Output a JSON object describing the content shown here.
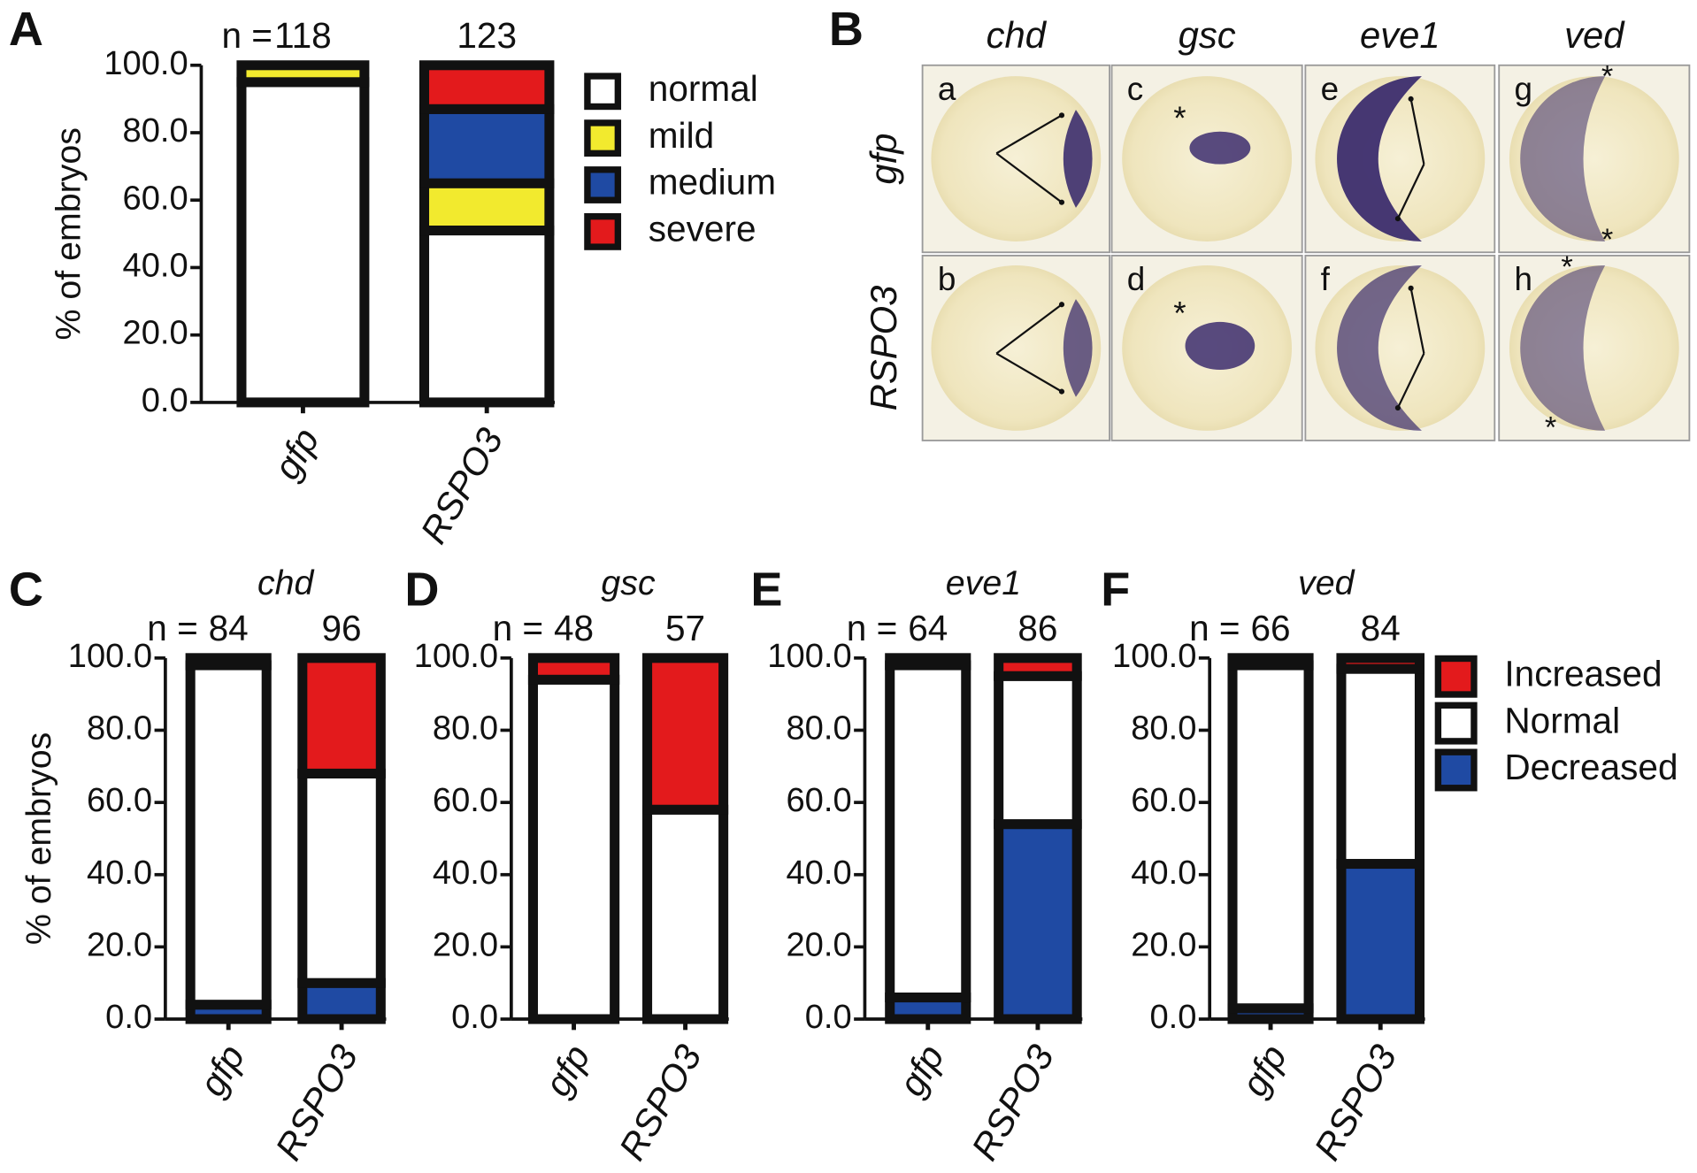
{
  "chart_data": [
    {
      "type": "stacked_bar",
      "panel": "A",
      "ylabel": "% of embryos",
      "n_label": "n =",
      "n": [
        118,
        123
      ],
      "categories": [
        "gfp",
        "RSPO3"
      ],
      "ylim": [
        0,
        100
      ],
      "yticks": [
        {
          "value": 0,
          "label": "0.0"
        },
        {
          "value": 20,
          "label": "20.0"
        },
        {
          "value": 40,
          "label": "40.0"
        },
        {
          "value": 60,
          "label": "60.0"
        },
        {
          "value": 80,
          "label": "80.0"
        },
        {
          "value": 100,
          "label": "100.0"
        }
      ],
      "legend": "right",
      "series": [
        {
          "name": "normal",
          "color": "#ffffff",
          "values": [
            95,
            51
          ]
        },
        {
          "name": "mild",
          "color": "#f2ea2e",
          "values": [
            5,
            14
          ]
        },
        {
          "name": "medium",
          "color": "#1f4aa3",
          "values": [
            0,
            22
          ]
        },
        {
          "name": "severe",
          "color": "#e31a1c",
          "values": [
            0,
            13
          ]
        }
      ]
    },
    {
      "type": "stacked_bar",
      "panel": "C",
      "title": "chd",
      "ylabel": "% of embryos",
      "n_label": "n =",
      "n": [
        84,
        96
      ],
      "categories": [
        "gfp",
        "RSPO3"
      ],
      "ylim": [
        0,
        100
      ],
      "yticks": [
        {
          "value": 0,
          "label": "0.0"
        },
        {
          "value": 20,
          "label": "20.0"
        },
        {
          "value": 40,
          "label": "40.0"
        },
        {
          "value": 60,
          "label": "60.0"
        },
        {
          "value": 80,
          "label": "80.0"
        },
        {
          "value": 100,
          "label": "100.0"
        }
      ],
      "series": [
        {
          "color": "#e31a1c",
          "values": [
            2,
            32
          ]
        },
        {
          "color": "#ffffff",
          "values": [
            94,
            58
          ]
        },
        {
          "color": "#1f4aa3",
          "values": [
            4,
            10
          ]
        }
      ]
    },
    {
      "type": "stacked_bar",
      "panel": "D",
      "title": "gsc",
      "n_label": "n =",
      "n": [
        48,
        57
      ],
      "categories": [
        "gfp",
        "RSPO3"
      ],
      "ylim": [
        0,
        100
      ],
      "yticks": [
        {
          "value": 0,
          "label": "0.0"
        },
        {
          "value": 20,
          "label": "20.0"
        },
        {
          "value": 40,
          "label": "40.0"
        },
        {
          "value": 60,
          "label": "60.0"
        },
        {
          "value": 80,
          "label": "80.0"
        },
        {
          "value": 100,
          "label": "100.0"
        }
      ],
      "series": [
        {
          "color": "#e31a1c",
          "values": [
            6,
            42
          ]
        },
        {
          "color": "#ffffff",
          "values": [
            94,
            58
          ]
        },
        {
          "color": "#1f4aa3",
          "values": [
            0,
            0
          ]
        }
      ]
    },
    {
      "type": "stacked_bar",
      "panel": "E",
      "title": "eve1",
      "n_label": "n =",
      "n": [
        64,
        86
      ],
      "categories": [
        "gfp",
        "RSPO3"
      ],
      "ylim": [
        0,
        100
      ],
      "yticks": [
        {
          "value": 0,
          "label": "0.0"
        },
        {
          "value": 20,
          "label": "20.0"
        },
        {
          "value": 40,
          "label": "40.0"
        },
        {
          "value": 60,
          "label": "60.0"
        },
        {
          "value": 80,
          "label": "80.0"
        },
        {
          "value": 100,
          "label": "100.0"
        }
      ],
      "series": [
        {
          "color": "#e31a1c",
          "values": [
            2,
            5
          ]
        },
        {
          "color": "#ffffff",
          "values": [
            92,
            41
          ]
        },
        {
          "color": "#1f4aa3",
          "values": [
            6,
            54
          ]
        }
      ]
    },
    {
      "type": "stacked_bar",
      "panel": "F",
      "title": "ved",
      "n_label": "n =",
      "n": [
        66,
        84
      ],
      "categories": [
        "gfp",
        "RSPO3"
      ],
      "ylim": [
        0,
        100
      ],
      "yticks": [
        {
          "value": 0,
          "label": "0.0"
        },
        {
          "value": 20,
          "label": "20.0"
        },
        {
          "value": 40,
          "label": "40.0"
        },
        {
          "value": 60,
          "label": "60.0"
        },
        {
          "value": 80,
          "label": "80.0"
        },
        {
          "value": 100,
          "label": "100.0"
        }
      ],
      "legend": "right",
      "series": [
        {
          "name": "Increased",
          "color": "#e31a1c",
          "values": [
            2,
            3
          ]
        },
        {
          "name": "Normal",
          "color": "#ffffff",
          "values": [
            95,
            54
          ]
        },
        {
          "name": "Decreased",
          "color": "#1f4aa3",
          "values": [
            3,
            43
          ]
        }
      ]
    }
  ],
  "panel_b": {
    "panel": "B",
    "columns": [
      "chd",
      "gsc",
      "eve1",
      "ved"
    ],
    "rows": [
      "gfp",
      "RSPO3"
    ],
    "labels": [
      "a",
      "b",
      "c",
      "d",
      "e",
      "f",
      "g",
      "h"
    ],
    "marker": "*"
  }
}
